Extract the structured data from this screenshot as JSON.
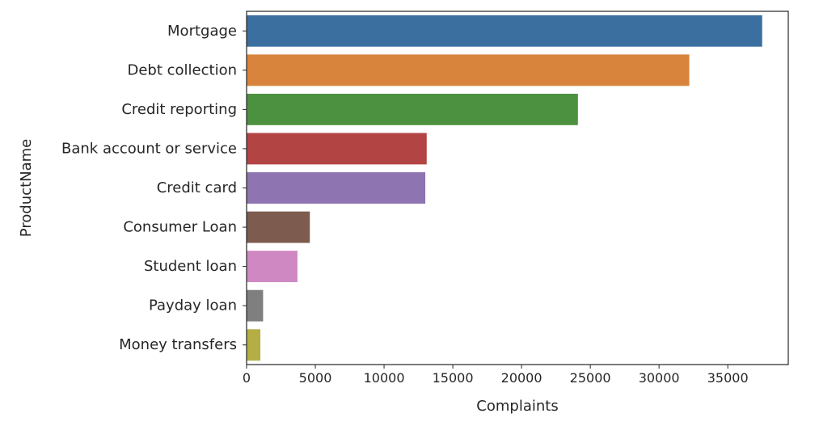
{
  "chart_data": {
    "type": "bar",
    "orientation": "horizontal",
    "title": "",
    "xlabel": "Complaints",
    "ylabel": "ProductName",
    "categories": [
      "Mortgage",
      "Debt collection",
      "Credit reporting",
      "Bank account or service",
      "Credit card",
      "Consumer Loan",
      "Student loan",
      "Payday loan",
      "Money transfers"
    ],
    "values": [
      37500,
      32200,
      24100,
      13100,
      13000,
      4600,
      3700,
      1200,
      1000
    ],
    "colors": [
      "#3a6f9f",
      "#d8843c",
      "#4c913f",
      "#b24443",
      "#8e74b0",
      "#7e5b4f",
      "#cf88c1",
      "#7f7f7f",
      "#b4ae45"
    ],
    "xlim": [
      0,
      39400
    ],
    "xticks": [
      0,
      5000,
      10000,
      15000,
      20000,
      25000,
      30000,
      35000
    ],
    "grid": false,
    "legend": "none"
  }
}
